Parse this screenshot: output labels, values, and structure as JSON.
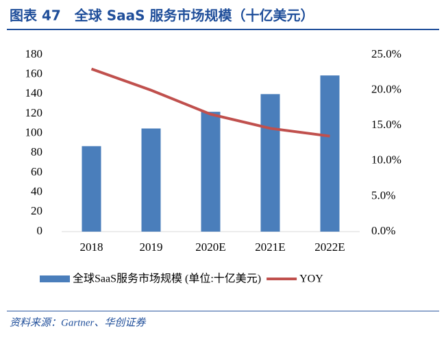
{
  "chart_data": {
    "type": "bar",
    "title": "图表 47　全球 SaaS 服务市场规模（十亿美元）",
    "categories": [
      "2018",
      "2019",
      "2020E",
      "2021E",
      "2022E"
    ],
    "series": [
      {
        "name": "全球SaaS服务市场规模 (单位:十亿美元)",
        "type": "bar",
        "color": "#4a7ebb",
        "values": [
          87,
          105,
          122,
          140,
          159
        ]
      },
      {
        "name": "YOY",
        "type": "line",
        "axis": "y2",
        "color": "#c0504d",
        "values": [
          23.0,
          20.0,
          16.6,
          14.6,
          13.5
        ]
      }
    ],
    "ylim": [
      0,
      180
    ],
    "yticks": [
      0,
      20,
      40,
      60,
      80,
      100,
      120,
      140,
      160,
      180
    ],
    "y2lim": [
      0,
      25
    ],
    "y2ticks": [
      {
        "value": 0,
        "label": "0.0%"
      },
      {
        "value": 5,
        "label": "5.0%"
      },
      {
        "value": 10,
        "label": "10.0%"
      },
      {
        "value": 15,
        "label": "15.0%"
      },
      {
        "value": 20,
        "label": "20.0%"
      },
      {
        "value": 25,
        "label": "25.0%"
      }
    ],
    "grid": false,
    "legend": "bottom",
    "source": "资料来源：Gartner、华创证券"
  }
}
